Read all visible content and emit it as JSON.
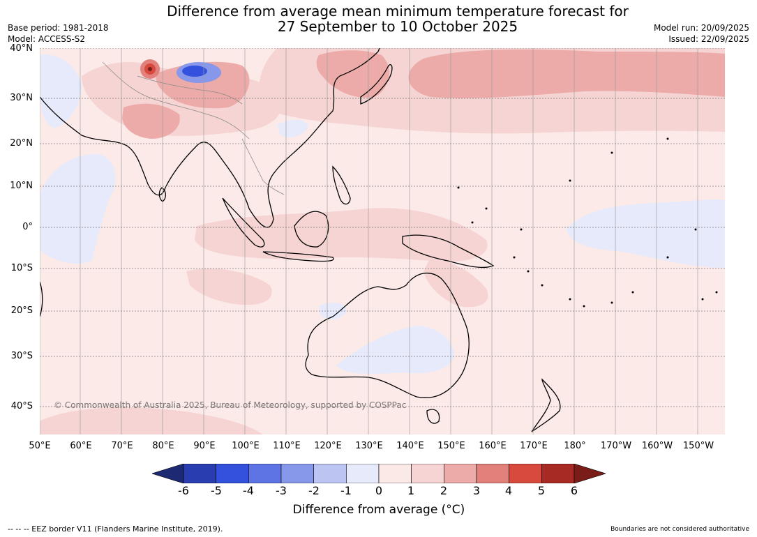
{
  "header": {
    "title_line1": "Difference from average mean minimum temperature forecast for",
    "title_line2": "27 September to 10 October 2025",
    "base_period": "Base period: 1981-2018",
    "model": "Model: ACCESS-S2",
    "model_run": "Model run: 20/09/2025",
    "issued": "Issued: 22/09/2025"
  },
  "map": {
    "latitude_labels": [
      "40°N",
      "30°N",
      "20°N",
      "10°N",
      "0°",
      "10°S",
      "20°S",
      "30°S",
      "40°S"
    ],
    "longitude_labels": [
      "50°E",
      "60°E",
      "70°E",
      "80°E",
      "90°E",
      "100°E",
      "110°E",
      "120°E",
      "130°E",
      "140°E",
      "150°E",
      "160°E",
      "170°E",
      "180°",
      "170°W",
      "160°W",
      "150°W"
    ],
    "copyright": "© Commonwealth of Australia 2025, Bureau of Meteorology, supported by COSPPac",
    "land_color": "#000000",
    "ocean_base_color": "#fceae8"
  },
  "colorbar": {
    "label": "Difference from average (°C)",
    "ticks": [
      "-6",
      "-5",
      "-4",
      "-3",
      "-2",
      "-1",
      "0",
      "1",
      "2",
      "3",
      "4",
      "5",
      "6"
    ],
    "colors": [
      "#1d2a73",
      "#2a3db0",
      "#3451de",
      "#5e73e4",
      "#8797ea",
      "#bcc5f2",
      "#e6eafb",
      "#fbe9e8",
      "#f5d4d3",
      "#ecaba8",
      "#e2817c",
      "#d84a3e",
      "#a82a24",
      "#7a1d18"
    ]
  },
  "footer": {
    "eez_note": "--  --  -- EEZ border V11 (Flanders Marine Institute, 2019).",
    "boundary_note": "Boundaries are not considered authoritative"
  }
}
